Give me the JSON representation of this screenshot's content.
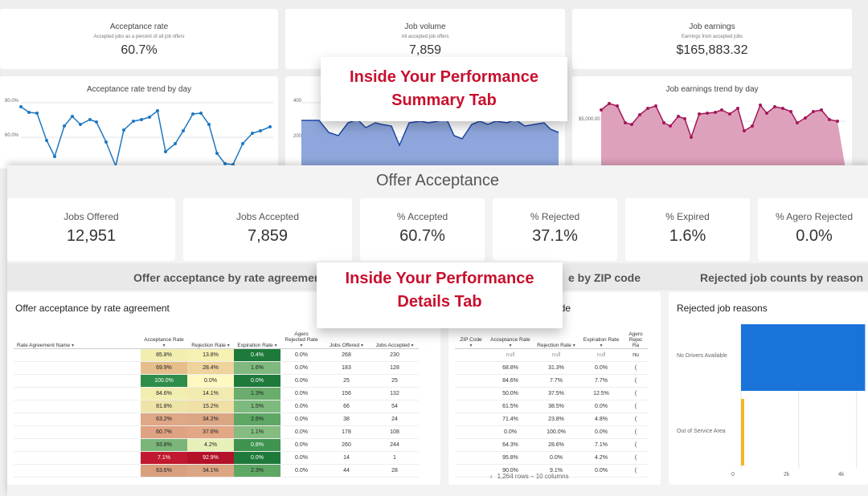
{
  "summary": {
    "kpis": [
      {
        "title": "Acceptance rate",
        "subtitle": "Accepted jobs as a percent of all job offers",
        "value": "60.7%"
      },
      {
        "title": "Job volume",
        "subtitle": "All accepted job offers",
        "value": "7,859"
      },
      {
        "title": "Job earnings",
        "subtitle": "Earnings from accepted jobs",
        "value": "$165,883.32"
      }
    ],
    "charts": {
      "acceptance": {
        "title": "Acceptance rate trend by day",
        "y_top": "80.0%",
        "y_mid": "60.0%"
      },
      "volume": {
        "y_top": "400",
        "y_mid": "200"
      },
      "earnings": {
        "title": "Job earnings trend by day",
        "y_mid": "$5,000.00"
      }
    }
  },
  "colors": {
    "accent_red": "#c8102e",
    "line_blue": "#1f78c1",
    "area_blue": "#8ea6dc",
    "area_pink": "#dea1bb",
    "line_pink": "#a3185a",
    "bar_blue": "#1a73d9",
    "bar_yellow": "#f6b622"
  },
  "overlays": {
    "summary": {
      "line1": "Inside Your Performance",
      "line2": "Summary Tab"
    },
    "details": {
      "line1": "Inside Your Performance",
      "line2": "Details Tab"
    }
  },
  "details": {
    "section_title": "Offer Acceptance",
    "kpis": [
      {
        "label": "Jobs Offered",
        "value": "12,951"
      },
      {
        "label": "Jobs Accepted",
        "value": "7,859"
      },
      {
        "label": "% Accepted",
        "value": "60.7%"
      },
      {
        "label": "% Rejected",
        "value": "37.1%"
      },
      {
        "label": "% Expired",
        "value": "1.6%"
      },
      {
        "label": "% Agero Rejected",
        "value": "0.0%"
      }
    ],
    "sub_headers": {
      "rate_agreement": "Offer acceptance by rate agreement",
      "zip": "e by ZIP code",
      "rejected": "Rejected job counts by reason"
    },
    "rate_table": {
      "title": "Offer acceptance by rate agreement",
      "columns": [
        "Rate Agreement Name",
        "Acceptance Rate",
        "Rejection Rate",
        "Expiration Rate",
        "Agero Rejected Rate",
        "Jobs Offered",
        "Jobs Accepted"
      ],
      "rows": [
        [
          "",
          "85.8%",
          "13.8%",
          "0.4%",
          "0.0%",
          "268",
          "230"
        ],
        [
          "",
          "69.9%",
          "28.4%",
          "1.6%",
          "0.0%",
          "183",
          "128"
        ],
        [
          "",
          "100.0%",
          "0.0%",
          "0.0%",
          "0.0%",
          "25",
          "25"
        ],
        [
          "",
          "84.6%",
          "14.1%",
          "1.3%",
          "0.0%",
          "156",
          "132"
        ],
        [
          "",
          "81.8%",
          "15.2%",
          "1.5%",
          "0.0%",
          "66",
          "54"
        ],
        [
          "",
          "63.2%",
          "34.2%",
          "2.6%",
          "0.0%",
          "38",
          "24"
        ],
        [
          "",
          "60.7%",
          "37.6%",
          "1.1%",
          "0.0%",
          "178",
          "108"
        ],
        [
          "",
          "93.8%",
          "4.2%",
          "0.8%",
          "0.0%",
          "260",
          "244"
        ],
        [
          "",
          "7.1%",
          "92.9%",
          "0.0%",
          "0.0%",
          "14",
          "1"
        ],
        [
          "",
          "63.6%",
          "34.1%",
          "2.3%",
          "0.0%",
          "44",
          "28"
        ]
      ],
      "heat": [
        [
          "#f1eeb0",
          "#f6f1b3",
          "#1e7a3a"
        ],
        [
          "#e6be8c",
          "#eed39c",
          "#7fb97f"
        ],
        [
          "#2f8d4a",
          "#fff8c0",
          "#1e7a3a"
        ],
        [
          "#f1eeb0",
          "#f2eaae",
          "#6aad6c"
        ],
        [
          "#eee4a8",
          "#f0e0a6",
          "#7dba7d"
        ],
        [
          "#dea786",
          "#dba683",
          "#5ea765"
        ],
        [
          "#dfa283",
          "#e2a785",
          "#85bc80"
        ],
        [
          "#7bb57a",
          "#e7f0b8",
          "#3f944f"
        ],
        [
          "#c1192f",
          "#b31229",
          "#1e7a3a"
        ],
        [
          "#d9a07f",
          "#dba683",
          "#5ea765"
        ]
      ]
    },
    "zip_table": {
      "title": "ode",
      "columns": [
        "ZIP Code",
        "Acceptance Rate",
        "Rejection Rate",
        "Expiration Rate",
        "Agero Rejec Ra"
      ],
      "rows": [
        [
          "",
          "null",
          "null",
          "null",
          "nu"
        ],
        [
          "",
          "68.8%",
          "31.3%",
          "0.0%",
          "("
        ],
        [
          "",
          "84.6%",
          "7.7%",
          "7.7%",
          "("
        ],
        [
          "",
          "50.0%",
          "37.5%",
          "12.5%",
          "("
        ],
        [
          "",
          "61.5%",
          "38.5%",
          "0.0%",
          "("
        ],
        [
          "",
          "71.4%",
          "23.8%",
          "4.8%",
          "("
        ],
        [
          "",
          "0.0%",
          "100.0%",
          "0.0%",
          "("
        ],
        [
          "",
          "64.3%",
          "28.6%",
          "7.1%",
          "("
        ],
        [
          "",
          "95.8%",
          "0.0%",
          "4.2%",
          "("
        ],
        [
          "",
          "90.0%",
          "9.1%",
          "0.0%",
          "("
        ]
      ],
      "footer": "1,264 rows – 10 columns"
    },
    "rejected_chart": {
      "title": "Rejected job reasons",
      "categories": [
        "No Drivers Available",
        "Out of Service Area"
      ],
      "values": [
        4300,
        60
      ],
      "ticks": [
        "0",
        "2k",
        "4k"
      ]
    }
  }
}
